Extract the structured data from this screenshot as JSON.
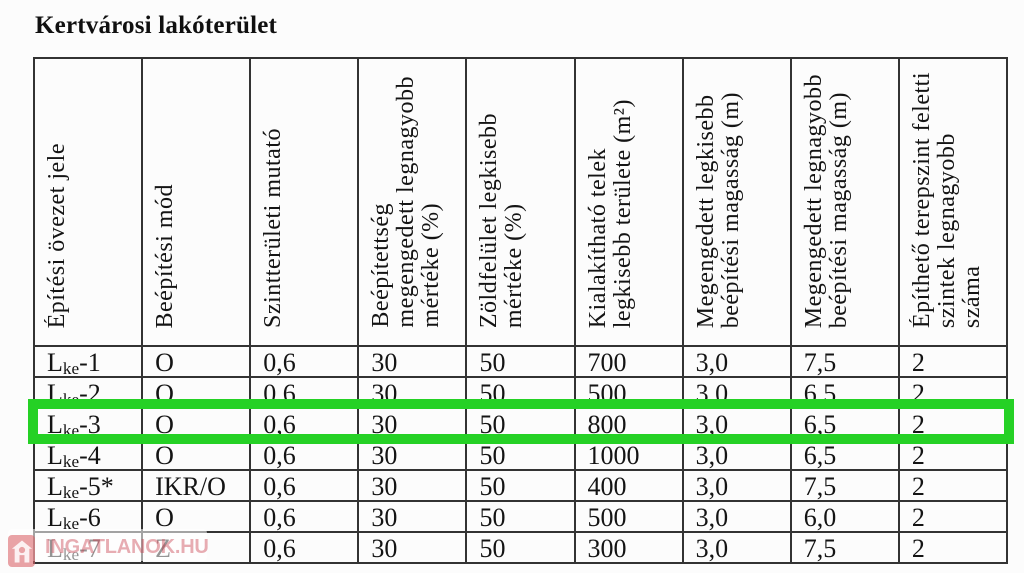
{
  "title": "Kertvárosi lakóterület",
  "highlight_color": "#25d125",
  "table": {
    "headers": [
      {
        "lines": [
          "Építési övezet jele"
        ]
      },
      {
        "lines": [
          "Beépítési mód"
        ]
      },
      {
        "lines": [
          "Szintterületi mutató"
        ]
      },
      {
        "lines": [
          "Beépítettség",
          "megengedett legnagyobb",
          "mértéke (%)"
        ]
      },
      {
        "lines": [
          "Zöldfelület legkisebb",
          "mértéke (%)"
        ]
      },
      {
        "lines": [
          "Kialakítható telek",
          "legkisebb területe (m²)"
        ]
      },
      {
        "lines": [
          "Megengedett legkisebb",
          "beépítési magasság (m)"
        ]
      },
      {
        "lines": [
          "Megengedett legnagyobb",
          "beépítési magasság (m)"
        ]
      },
      {
        "lines": [
          "Építhető terepszint feletti",
          "szintek legnagyobb",
          "száma"
        ]
      }
    ],
    "rows": [
      {
        "zone": {
          "prefix": "L",
          "sub": "ke",
          "suffix": "-1"
        },
        "cells": [
          "O",
          "0,6",
          "30",
          "50",
          "700",
          "3,0",
          "7,5",
          "2"
        ],
        "highlighted": false
      },
      {
        "zone": {
          "prefix": "L",
          "sub": "ke",
          "suffix": "-2"
        },
        "cells": [
          "O",
          "0,6",
          "30",
          "50",
          "500",
          "3,0",
          "6,5",
          "2"
        ],
        "highlighted": false
      },
      {
        "zone": {
          "prefix": "L",
          "sub": "ke",
          "suffix": "-3"
        },
        "cells": [
          "O",
          "0,6",
          "30",
          "50",
          "800",
          "3,0",
          "6,5",
          "2"
        ],
        "highlighted": true
      },
      {
        "zone": {
          "prefix": "L",
          "sub": "ke",
          "suffix": "-4"
        },
        "cells": [
          "O",
          "0,6",
          "30",
          "50",
          "1000",
          "3,0",
          "6,5",
          "2"
        ],
        "highlighted": false
      },
      {
        "zone": {
          "prefix": "L",
          "sub": "ke",
          "suffix": "-5*"
        },
        "cells": [
          "IKR/O",
          "0,6",
          "30",
          "50",
          "400",
          "3,0",
          "7,5",
          "2"
        ],
        "highlighted": false
      },
      {
        "zone": {
          "prefix": "L",
          "sub": "ke",
          "suffix": "-6"
        },
        "cells": [
          "O",
          "0,6",
          "30",
          "50",
          "500",
          "3,0",
          "6,0",
          "2"
        ],
        "highlighted": false
      },
      {
        "zone": {
          "prefix": "L",
          "sub": "ke",
          "suffix": "-7"
        },
        "cells": [
          "Z",
          "0,6",
          "30",
          "50",
          "300",
          "3,0",
          "7,5",
          "2"
        ],
        "highlighted": false
      }
    ]
  },
  "watermark": {
    "text": "INGATLANOK.HU",
    "icon": "house-icon"
  }
}
